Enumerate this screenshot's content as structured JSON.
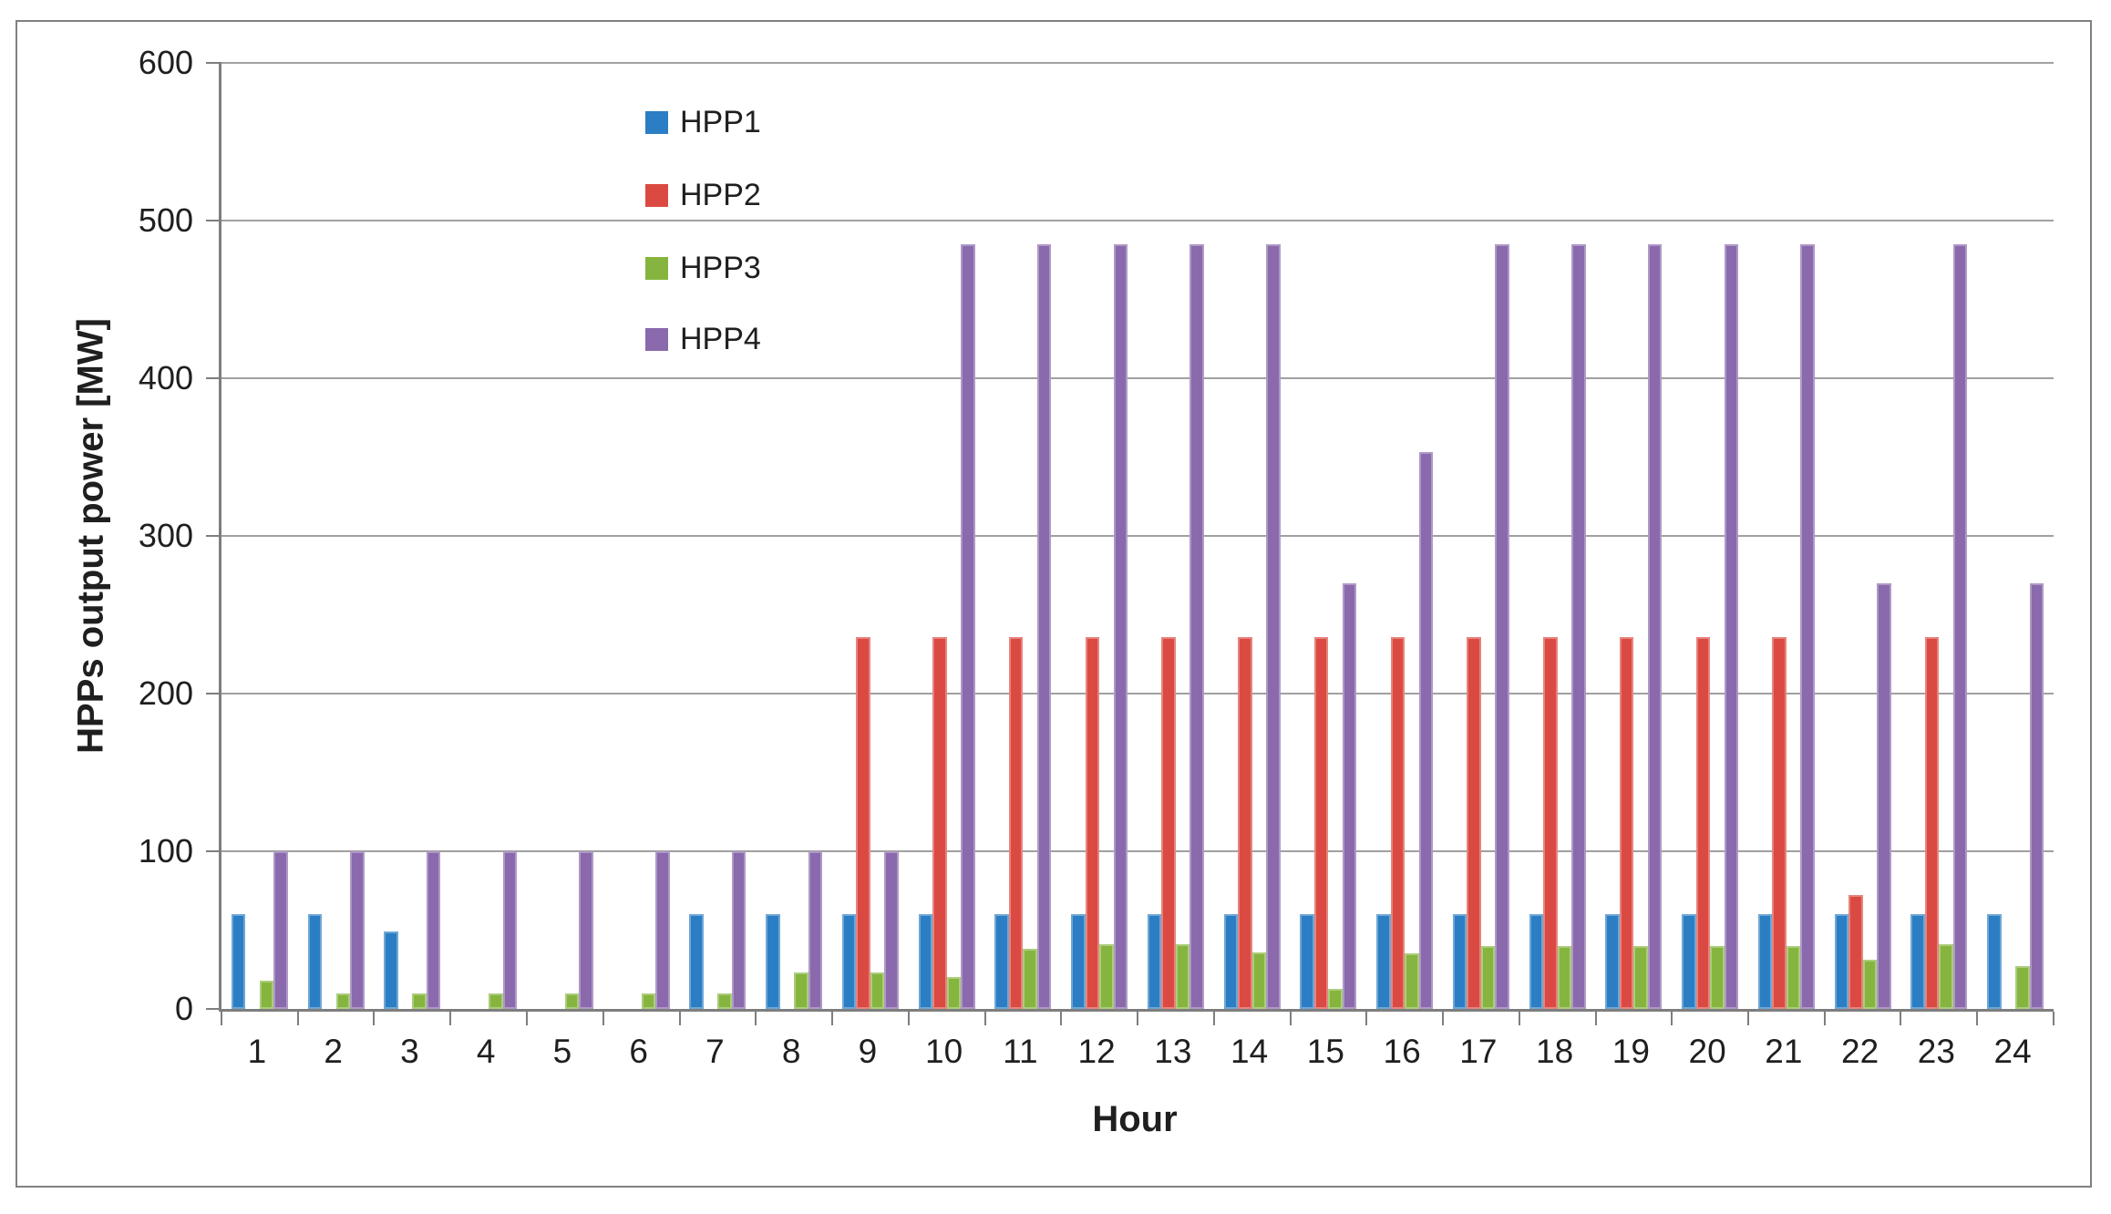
{
  "chart_data": {
    "type": "bar",
    "title": "",
    "xlabel": "Hour",
    "ylabel": "HPPs output power [MW]",
    "ylim": [
      0,
      600
    ],
    "ytick_step": 100,
    "ytick_labels": [
      "0",
      "100",
      "200",
      "300",
      "400",
      "500",
      "600"
    ],
    "categories": [
      "1",
      "2",
      "3",
      "4",
      "5",
      "6",
      "7",
      "8",
      "9",
      "10",
      "11",
      "12",
      "13",
      "14",
      "15",
      "16",
      "17",
      "18",
      "19",
      "20",
      "21",
      "22",
      "23",
      "24"
    ],
    "series": [
      {
        "name": "HPP1",
        "color": "#2b7ec3",
        "values": [
          60,
          60,
          49,
          0,
          0,
          0,
          60,
          60,
          60,
          60,
          60,
          60,
          60,
          60,
          60,
          60,
          60,
          60,
          60,
          60,
          60,
          60,
          60,
          60
        ]
      },
      {
        "name": "HPP2",
        "color": "#db4a42",
        "values": [
          0,
          0,
          0,
          0,
          0,
          0,
          0,
          0,
          236,
          236,
          236,
          236,
          236,
          236,
          236,
          236,
          236,
          236,
          236,
          236,
          236,
          72,
          236,
          0
        ]
      },
      {
        "name": "HPP3",
        "color": "#85b53f",
        "values": [
          18,
          10,
          10,
          10,
          10,
          10,
          10,
          23,
          23,
          20,
          38,
          41,
          41,
          36,
          13,
          35,
          40,
          40,
          40,
          40,
          40,
          31,
          41,
          27
        ]
      },
      {
        "name": "HPP4",
        "color": "#8a69ac",
        "values": [
          100,
          100,
          100,
          100,
          100,
          100,
          100,
          100,
          100,
          485,
          485,
          485,
          485,
          485,
          270,
          353,
          485,
          485,
          485,
          485,
          485,
          270,
          485,
          270
        ]
      }
    ],
    "legend": {
      "position": "inside-top-left",
      "entries": [
        "HPP1",
        "HPP2",
        "HPP3",
        "HPP4"
      ]
    },
    "grid": true,
    "style_colors": {
      "gridline": "#a0a0a0",
      "axis": "#7e7e7e",
      "outer_border": "#808080",
      "text": "#1f1f1f",
      "background": "#ffffff"
    }
  }
}
